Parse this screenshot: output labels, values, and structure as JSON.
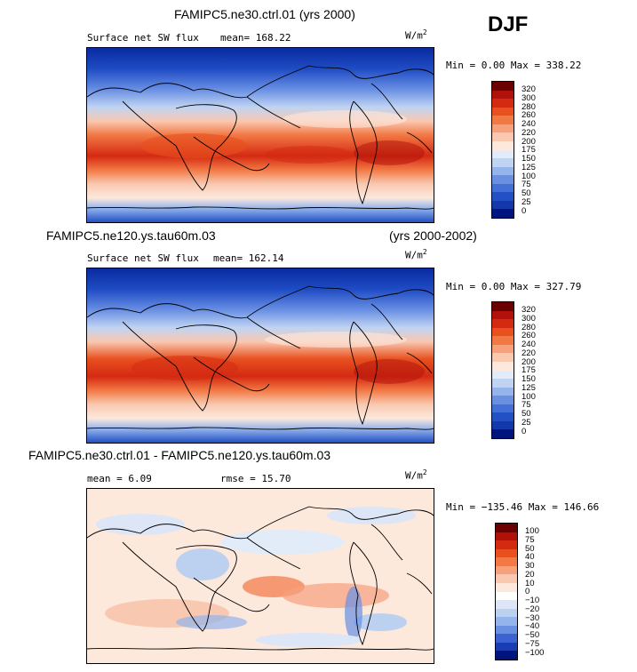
{
  "season": "DJF",
  "panels": [
    {
      "title": "FAMIPC5.ne30.ctrl.01 (yrs 2000)",
      "field": "Surface net SW flux",
      "stat": "mean= 168.22",
      "units": "W/m",
      "units_exp": "2",
      "minmax": "Min =   0.00 Max = 338.22",
      "levels": [
        "320",
        "300",
        "280",
        "260",
        "240",
        "220",
        "200",
        "175",
        "150",
        "125",
        "100",
        "75",
        "50",
        "25",
        "0"
      ],
      "colors": [
        "#6b0000",
        "#b0120a",
        "#d42a12",
        "#e8501e",
        "#f27844",
        "#f7a07c",
        "#f9c8b0",
        "#fde8dc",
        "#e2ecf8",
        "#c0d4f2",
        "#94b4ec",
        "#6a90e4",
        "#4470d6",
        "#2350c4",
        "#1238ac",
        "#00147e"
      ]
    },
    {
      "title_left": "FAMIPC5.ne120.ys.tau60m.03",
      "title_right": "(yrs 2000-2002)",
      "field": "Surface net SW flux",
      "stat": "mean= 162.14",
      "units": "W/m",
      "units_exp": "2",
      "minmax": "Min =   0.00 Max = 327.79",
      "levels": [
        "320",
        "300",
        "280",
        "260",
        "240",
        "220",
        "200",
        "175",
        "150",
        "125",
        "100",
        "75",
        "50",
        "25",
        "0"
      ],
      "colors": [
        "#6b0000",
        "#b0120a",
        "#d42a12",
        "#e8501e",
        "#f27844",
        "#f7a07c",
        "#f9c8b0",
        "#fde8dc",
        "#e2ecf8",
        "#c0d4f2",
        "#94b4ec",
        "#6a90e4",
        "#4470d6",
        "#2350c4",
        "#1238ac",
        "#00147e"
      ]
    },
    {
      "title": "FAMIPC5.ne30.ctrl.01 - FAMIPC5.ne120.ys.tau60m.03",
      "stat": "mean =   6.09",
      "rmse": "rmse =  15.70",
      "units": "W/m",
      "units_exp": "2",
      "minmax": "Min = −135.46 Max = 146.66",
      "levels": [
        "100",
        "75",
        "50",
        "40",
        "30",
        "20",
        "10",
        "0",
        "−10",
        "−20",
        "−30",
        "−40",
        "−50",
        "−75",
        "−100"
      ],
      "colors": [
        "#6b0000",
        "#b0120a",
        "#d42a12",
        "#e8501e",
        "#f27844",
        "#f7a07c",
        "#f9c8b0",
        "#fde8dc",
        "#ffffff",
        "#dce6f6",
        "#bcd0f0",
        "#94b4ec",
        "#6a90e4",
        "#3a62d0",
        "#1a3cb4",
        "#00147e"
      ]
    }
  ]
}
